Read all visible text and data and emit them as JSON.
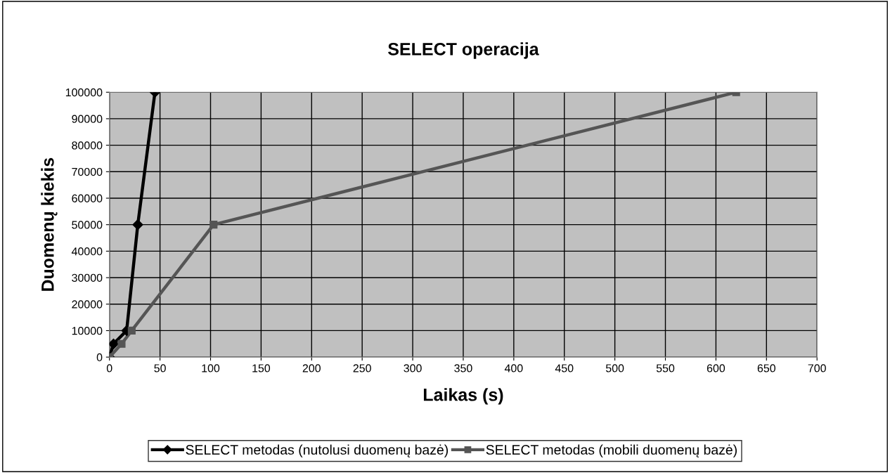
{
  "chart_data": {
    "type": "line",
    "title": "SELECT operacija",
    "xlabel": "Laikas (s)",
    "ylabel": "Duomenų kiekis",
    "series": [
      {
        "name": "SELECT metodas (nutolusi duomenų bazė)",
        "color": "#000000",
        "marker": "diamond",
        "x": [
          0,
          4,
          17,
          28,
          45
        ],
        "values": [
          0,
          5000,
          10000,
          50000,
          100000
        ]
      },
      {
        "name": "SELECT metodas (mobili duomenų bazė)",
        "color": "#555555",
        "marker": "square",
        "x": [
          0,
          12,
          22,
          103,
          620
        ],
        "values": [
          0,
          5000,
          10000,
          50000,
          100000
        ]
      }
    ],
    "xlim": [
      0,
      700
    ],
    "xticks": [
      0,
      50,
      100,
      150,
      200,
      250,
      300,
      350,
      400,
      450,
      500,
      550,
      600,
      650,
      700
    ],
    "ylim": [
      0,
      100000
    ],
    "yticks": [
      0,
      10000,
      20000,
      30000,
      40000,
      50000,
      60000,
      70000,
      80000,
      90000,
      100000
    ],
    "grid": true,
    "legend": "bottom",
    "line_style": "solid"
  }
}
